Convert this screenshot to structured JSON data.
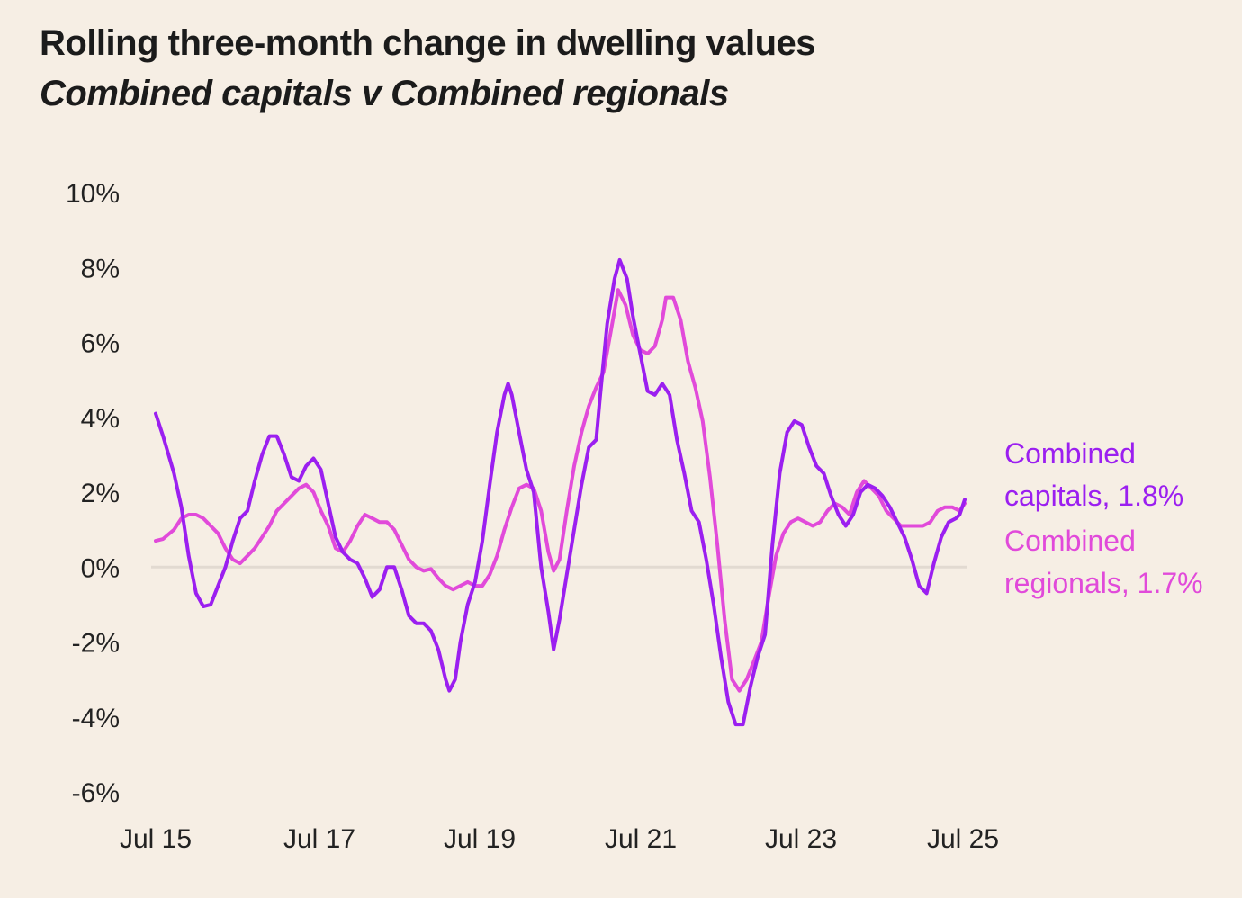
{
  "chart_data": {
    "type": "line",
    "title": "Rolling three-month change in dwelling values",
    "subtitle": "Combined capitals v Combined regionals",
    "xlabel": "",
    "ylabel": "",
    "ylim": [
      -6,
      10
    ],
    "yticks": [
      "10%",
      "8%",
      "6%",
      "4%",
      "2%",
      "0%",
      "-2%",
      "-4%",
      "-6%"
    ],
    "ytick_values": [
      10,
      8,
      6,
      4,
      2,
      0,
      -2,
      -4,
      -6
    ],
    "xticks": [
      "Jul 15",
      "Jul 17",
      "Jul 19",
      "Jul 21",
      "Jul 23",
      "Jul 25"
    ],
    "xtick_values": [
      2015.5,
      2017.5,
      2019.5,
      2021.5,
      2023.5,
      2025.5
    ],
    "grid": false,
    "zero_line": true,
    "legend": "end-of-line labels",
    "series": [
      {
        "name": "Combined capitals",
        "end_label": "Combined capitals, 1.8%",
        "end_label_lines": [
          "Combined",
          "capitals, 1.8%"
        ],
        "color": "#9B1FF0",
        "points": [
          [
            2015.5,
            4.1
          ],
          [
            2015.6,
            3.5
          ],
          [
            2015.75,
            2.5
          ],
          [
            2015.85,
            1.6
          ],
          [
            2015.95,
            0.3
          ],
          [
            2016.05,
            -0.7
          ],
          [
            2016.15,
            -1.05
          ],
          [
            2016.25,
            -1.0
          ],
          [
            2016.35,
            -0.5
          ],
          [
            2016.45,
            0.0
          ],
          [
            2016.55,
            0.7
          ],
          [
            2016.65,
            1.3
          ],
          [
            2016.75,
            1.5
          ],
          [
            2016.85,
            2.3
          ],
          [
            2016.95,
            3.0
          ],
          [
            2017.05,
            3.5
          ],
          [
            2017.15,
            3.5
          ],
          [
            2017.25,
            3.0
          ],
          [
            2017.35,
            2.4
          ],
          [
            2017.45,
            2.3
          ],
          [
            2017.55,
            2.7
          ],
          [
            2017.65,
            2.9
          ],
          [
            2017.75,
            2.6
          ],
          [
            2017.85,
            1.7
          ],
          [
            2017.95,
            0.8
          ],
          [
            2018.05,
            0.4
          ],
          [
            2018.15,
            0.2
          ],
          [
            2018.25,
            0.1
          ],
          [
            2018.35,
            -0.3
          ],
          [
            2018.45,
            -0.8
          ],
          [
            2018.55,
            -0.6
          ],
          [
            2018.65,
            0.0
          ],
          [
            2018.75,
            0.0
          ],
          [
            2018.85,
            -0.6
          ],
          [
            2018.95,
            -1.3
          ],
          [
            2019.05,
            -1.5
          ],
          [
            2019.15,
            -1.5
          ],
          [
            2019.25,
            -1.7
          ],
          [
            2019.35,
            -2.2
          ],
          [
            2019.45,
            -3.0
          ],
          [
            2019.5,
            -3.3
          ],
          [
            2019.58,
            -3.0
          ],
          [
            2019.65,
            -2.0
          ],
          [
            2019.75,
            -1.0
          ],
          [
            2019.85,
            -0.4
          ],
          [
            2019.95,
            0.7
          ],
          [
            2020.05,
            2.2
          ],
          [
            2020.15,
            3.6
          ],
          [
            2020.25,
            4.6
          ],
          [
            2020.3,
            4.9
          ],
          [
            2020.35,
            4.6
          ],
          [
            2020.45,
            3.6
          ],
          [
            2020.55,
            2.6
          ],
          [
            2020.65,
            2.0
          ],
          [
            2020.75,
            0.0
          ],
          [
            2020.85,
            -1.2
          ],
          [
            2020.92,
            -2.2
          ],
          [
            2021.0,
            -1.4
          ],
          [
            2021.1,
            -0.2
          ],
          [
            2021.2,
            1.0
          ],
          [
            2021.3,
            2.2
          ],
          [
            2021.4,
            3.2
          ],
          [
            2021.5,
            3.4
          ],
          [
            2021.55,
            4.5
          ],
          [
            2021.65,
            6.5
          ],
          [
            2021.75,
            7.7
          ],
          [
            2021.82,
            8.2
          ],
          [
            2021.92,
            7.7
          ],
          [
            2022.0,
            6.7
          ],
          [
            2022.1,
            5.7
          ],
          [
            2022.2,
            4.7
          ],
          [
            2022.3,
            4.6
          ],
          [
            2022.4,
            4.9
          ],
          [
            2022.5,
            4.6
          ],
          [
            2022.6,
            3.4
          ],
          [
            2022.7,
            2.5
          ],
          [
            2022.8,
            1.5
          ],
          [
            2022.9,
            1.2
          ],
          [
            2023.0,
            0.2
          ],
          [
            2023.1,
            -1.0
          ],
          [
            2023.2,
            -2.4
          ],
          [
            2023.3,
            -3.6
          ],
          [
            2023.4,
            -4.2
          ],
          [
            2023.5,
            -4.2
          ],
          [
            2023.6,
            -3.2
          ],
          [
            2023.7,
            -2.4
          ],
          [
            2023.8,
            -1.8
          ],
          [
            2023.9,
            0.6
          ],
          [
            2024.0,
            2.5
          ],
          [
            2024.1,
            3.6
          ],
          [
            2024.2,
            3.9
          ],
          [
            2024.3,
            3.8
          ],
          [
            2024.4,
            3.2
          ],
          [
            2024.5,
            2.7
          ],
          [
            2024.6,
            2.5
          ],
          [
            2024.7,
            1.9
          ],
          [
            2024.8,
            1.4
          ],
          [
            2024.9,
            1.1
          ],
          [
            2025.0,
            1.4
          ],
          [
            2025.1,
            2.0
          ],
          [
            2025.2,
            2.2
          ],
          [
            2025.3,
            2.1
          ],
          [
            2025.4,
            1.9
          ],
          [
            2025.5,
            1.6
          ],
          [
            2025.6,
            1.2
          ],
          [
            2025.7,
            0.8
          ],
          [
            2025.8,
            0.2
          ],
          [
            2025.9,
            -0.5
          ],
          [
            2026.0,
            -0.7
          ],
          [
            2026.1,
            0.1
          ],
          [
            2026.2,
            0.8
          ],
          [
            2026.3,
            1.2
          ],
          [
            2026.4,
            1.3
          ],
          [
            2026.45,
            1.4
          ],
          [
            2026.52,
            1.8
          ]
        ]
      },
      {
        "name": "Combined regionals",
        "end_label": "Combined regionals, 1.7%",
        "end_label_lines": [
          "Combined",
          "regionals, 1.7%"
        ],
        "color": "#E14ADA",
        "points": [
          [
            2015.5,
            0.7
          ],
          [
            2015.6,
            0.75
          ],
          [
            2015.75,
            1.0
          ],
          [
            2015.85,
            1.3
          ],
          [
            2015.95,
            1.4
          ],
          [
            2016.05,
            1.4
          ],
          [
            2016.15,
            1.3
          ],
          [
            2016.25,
            1.1
          ],
          [
            2016.35,
            0.9
          ],
          [
            2016.45,
            0.5
          ],
          [
            2016.55,
            0.2
          ],
          [
            2016.65,
            0.1
          ],
          [
            2016.75,
            0.3
          ],
          [
            2016.85,
            0.5
          ],
          [
            2016.95,
            0.8
          ],
          [
            2017.05,
            1.1
          ],
          [
            2017.15,
            1.5
          ],
          [
            2017.25,
            1.7
          ],
          [
            2017.35,
            1.9
          ],
          [
            2017.45,
            2.1
          ],
          [
            2017.55,
            2.2
          ],
          [
            2017.65,
            2.0
          ],
          [
            2017.75,
            1.5
          ],
          [
            2017.85,
            1.1
          ],
          [
            2017.95,
            0.5
          ],
          [
            2018.05,
            0.4
          ],
          [
            2018.15,
            0.7
          ],
          [
            2018.25,
            1.1
          ],
          [
            2018.35,
            1.4
          ],
          [
            2018.45,
            1.3
          ],
          [
            2018.55,
            1.2
          ],
          [
            2018.65,
            1.2
          ],
          [
            2018.75,
            1.0
          ],
          [
            2018.85,
            0.6
          ],
          [
            2018.95,
            0.2
          ],
          [
            2019.05,
            0.0
          ],
          [
            2019.15,
            -0.1
          ],
          [
            2019.25,
            -0.05
          ],
          [
            2019.35,
            -0.3
          ],
          [
            2019.45,
            -0.5
          ],
          [
            2019.55,
            -0.6
          ],
          [
            2019.65,
            -0.5
          ],
          [
            2019.75,
            -0.4
          ],
          [
            2019.85,
            -0.5
          ],
          [
            2019.95,
            -0.5
          ],
          [
            2020.05,
            -0.2
          ],
          [
            2020.15,
            0.3
          ],
          [
            2020.25,
            1.0
          ],
          [
            2020.35,
            1.6
          ],
          [
            2020.45,
            2.1
          ],
          [
            2020.55,
            2.2
          ],
          [
            2020.65,
            2.1
          ],
          [
            2020.75,
            1.5
          ],
          [
            2020.85,
            0.4
          ],
          [
            2020.92,
            -0.1
          ],
          [
            2021.0,
            0.2
          ],
          [
            2021.1,
            1.5
          ],
          [
            2021.2,
            2.7
          ],
          [
            2021.3,
            3.6
          ],
          [
            2021.4,
            4.3
          ],
          [
            2021.5,
            4.8
          ],
          [
            2021.6,
            5.2
          ],
          [
            2021.7,
            6.3
          ],
          [
            2021.8,
            7.4
          ],
          [
            2021.9,
            7.0
          ],
          [
            2022.0,
            6.2
          ],
          [
            2022.1,
            5.8
          ],
          [
            2022.2,
            5.7
          ],
          [
            2022.3,
            5.9
          ],
          [
            2022.4,
            6.6
          ],
          [
            2022.45,
            7.2
          ],
          [
            2022.55,
            7.2
          ],
          [
            2022.65,
            6.6
          ],
          [
            2022.75,
            5.5
          ],
          [
            2022.85,
            4.8
          ],
          [
            2022.95,
            3.9
          ],
          [
            2023.05,
            2.4
          ],
          [
            2023.15,
            0.6
          ],
          [
            2023.25,
            -1.4
          ],
          [
            2023.35,
            -3.0
          ],
          [
            2023.45,
            -3.3
          ],
          [
            2023.55,
            -3.0
          ],
          [
            2023.65,
            -2.5
          ],
          [
            2023.75,
            -2.0
          ],
          [
            2023.85,
            -0.8
          ],
          [
            2023.95,
            0.3
          ],
          [
            2024.05,
            0.9
          ],
          [
            2024.15,
            1.2
          ],
          [
            2024.25,
            1.3
          ],
          [
            2024.35,
            1.2
          ],
          [
            2024.45,
            1.1
          ],
          [
            2024.55,
            1.2
          ],
          [
            2024.65,
            1.5
          ],
          [
            2024.75,
            1.7
          ],
          [
            2024.85,
            1.6
          ],
          [
            2024.95,
            1.4
          ],
          [
            2025.05,
            2.0
          ],
          [
            2025.15,
            2.3
          ],
          [
            2025.25,
            2.1
          ],
          [
            2025.35,
            1.9
          ],
          [
            2025.45,
            1.5
          ],
          [
            2025.55,
            1.3
          ],
          [
            2025.65,
            1.1
          ],
          [
            2025.75,
            1.1
          ],
          [
            2025.85,
            1.1
          ],
          [
            2025.95,
            1.1
          ],
          [
            2026.05,
            1.2
          ],
          [
            2026.15,
            1.5
          ],
          [
            2026.25,
            1.6
          ],
          [
            2026.35,
            1.6
          ],
          [
            2026.45,
            1.5
          ],
          [
            2026.52,
            1.7
          ]
        ]
      }
    ]
  }
}
